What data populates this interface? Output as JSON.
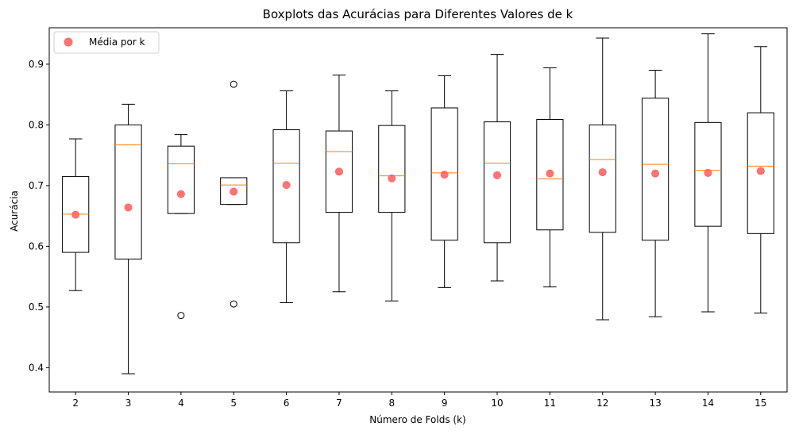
{
  "chart_data": {
    "type": "boxplot",
    "title": "Boxplots das Acurácias para Diferentes Valores de k",
    "xlabel": "Número de Folds (k)",
    "ylabel": "Acurácia",
    "ylim": [
      0.36,
      0.96
    ],
    "yticks": [
      0.4,
      0.5,
      0.6,
      0.7,
      0.8,
      0.9
    ],
    "ytick_labels": [
      "0.4",
      "0.5",
      "0.6",
      "0.7",
      "0.8",
      "0.9"
    ],
    "categories": [
      "2",
      "3",
      "4",
      "5",
      "6",
      "7",
      "8",
      "9",
      "10",
      "11",
      "12",
      "13",
      "14",
      "15"
    ],
    "legend": {
      "label": "Média por k",
      "placement": "top-left"
    },
    "colors": {
      "box": "#000000",
      "median": "#ff7f0e",
      "mean": "#ff6666"
    },
    "boxes": [
      {
        "k": "2",
        "whislo": 0.527,
        "q1": 0.59,
        "med": 0.653,
        "q3": 0.715,
        "whishi": 0.777,
        "mean": 0.652,
        "fliers": []
      },
      {
        "k": "3",
        "whislo": 0.39,
        "q1": 0.579,
        "med": 0.767,
        "q3": 0.8,
        "whishi": 0.834,
        "mean": 0.664,
        "fliers": []
      },
      {
        "k": "4",
        "whislo": 0.654,
        "q1": 0.654,
        "med": 0.736,
        "q3": 0.765,
        "whishi": 0.784,
        "mean": 0.686,
        "fliers": [
          0.486
        ]
      },
      {
        "k": "5",
        "whislo": 0.669,
        "q1": 0.669,
        "med": 0.701,
        "q3": 0.713,
        "whishi": 0.713,
        "mean": 0.69,
        "fliers": [
          0.867,
          0.505
        ]
      },
      {
        "k": "6",
        "whislo": 0.507,
        "q1": 0.606,
        "med": 0.737,
        "q3": 0.792,
        "whishi": 0.856,
        "mean": 0.701,
        "fliers": []
      },
      {
        "k": "7",
        "whislo": 0.525,
        "q1": 0.656,
        "med": 0.756,
        "q3": 0.79,
        "whishi": 0.882,
        "mean": 0.723,
        "fliers": []
      },
      {
        "k": "8",
        "whislo": 0.51,
        "q1": 0.656,
        "med": 0.716,
        "q3": 0.799,
        "whishi": 0.856,
        "mean": 0.712,
        "fliers": []
      },
      {
        "k": "9",
        "whislo": 0.532,
        "q1": 0.61,
        "med": 0.721,
        "q3": 0.828,
        "whishi": 0.881,
        "mean": 0.718,
        "fliers": []
      },
      {
        "k": "10",
        "whislo": 0.543,
        "q1": 0.606,
        "med": 0.737,
        "q3": 0.805,
        "whishi": 0.916,
        "mean": 0.717,
        "fliers": []
      },
      {
        "k": "11",
        "whislo": 0.533,
        "q1": 0.627,
        "med": 0.711,
        "q3": 0.809,
        "whishi": 0.894,
        "mean": 0.72,
        "fliers": []
      },
      {
        "k": "12",
        "whislo": 0.479,
        "q1": 0.623,
        "med": 0.743,
        "q3": 0.8,
        "whishi": 0.943,
        "mean": 0.722,
        "fliers": []
      },
      {
        "k": "13",
        "whislo": 0.484,
        "q1": 0.61,
        "med": 0.735,
        "q3": 0.844,
        "whishi": 0.89,
        "mean": 0.72,
        "fliers": []
      },
      {
        "k": "14",
        "whislo": 0.492,
        "q1": 0.633,
        "med": 0.725,
        "q3": 0.804,
        "whishi": 0.95,
        "mean": 0.721,
        "fliers": []
      },
      {
        "k": "15",
        "whislo": 0.49,
        "q1": 0.621,
        "med": 0.732,
        "q3": 0.82,
        "whishi": 0.929,
        "mean": 0.724,
        "fliers": []
      }
    ]
  }
}
